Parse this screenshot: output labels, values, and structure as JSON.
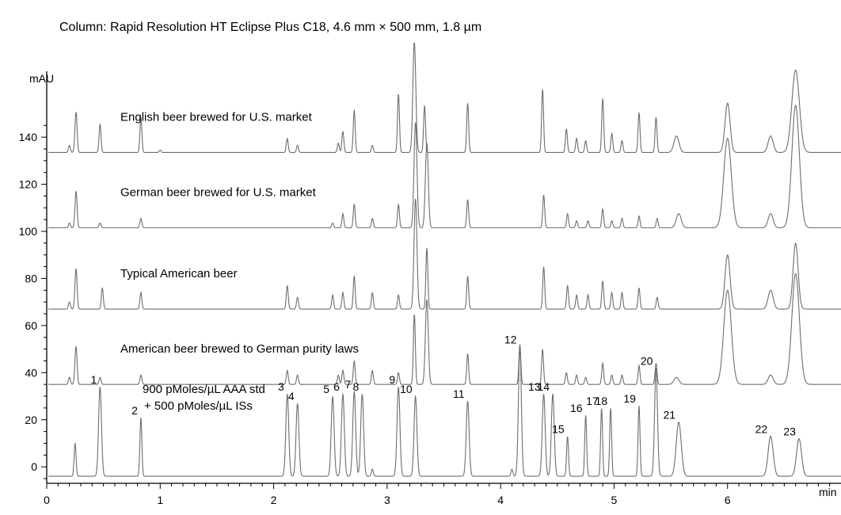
{
  "chart_data": {
    "type": "line",
    "title": "Column: Rapid Resolution HT Eclipse Plus C18, 4.6 mm × 500 mm, 1.8 µm",
    "xlabel": "min",
    "ylabel": "mAU",
    "xlim": [
      0,
      7.0
    ],
    "ylim": [
      -7,
      172
    ],
    "x_ticks": [
      0,
      1,
      2,
      3,
      4,
      5,
      6
    ],
    "y_ticks": [
      0,
      20,
      40,
      60,
      80,
      100,
      120,
      140
    ],
    "grid": false,
    "line_color": "#6e6e6e",
    "standard_note": [
      "900 pMoles/µL AAA std",
      "+ 500 pMoles/µL ISs"
    ],
    "series": [
      {
        "name": "English beer brewed for U.S. market",
        "baseline": 133.5,
        "peaks": [
          [
            0.2,
            3
          ],
          [
            0.25,
            4
          ],
          [
            0.26,
            15
          ],
          [
            0.47,
            12
          ],
          [
            0.83,
            15
          ],
          [
            1.0,
            1
          ],
          [
            2.12,
            6
          ],
          [
            2.21,
            3
          ],
          [
            2.57,
            4
          ],
          [
            2.61,
            9
          ],
          [
            2.71,
            18
          ],
          [
            2.87,
            3
          ],
          [
            3.1,
            25
          ],
          [
            3.24,
            47
          ],
          [
            3.33,
            20
          ],
          [
            3.71,
            21
          ],
          [
            4.37,
            27
          ],
          [
            4.58,
            10
          ],
          [
            4.67,
            6
          ],
          [
            4.75,
            5
          ],
          [
            4.9,
            23
          ],
          [
            4.98,
            8
          ],
          [
            5.07,
            5
          ],
          [
            5.22,
            17
          ],
          [
            5.37,
            15
          ],
          [
            5.55,
            7
          ],
          [
            6.0,
            21
          ],
          [
            6.38,
            7
          ],
          [
            6.6,
            35
          ]
        ]
      },
      {
        "name": "German beer brewed for U.S. market",
        "baseline": 101.5,
        "peaks": [
          [
            0.2,
            2
          ],
          [
            0.25,
            3
          ],
          [
            0.26,
            14
          ],
          [
            0.47,
            2
          ],
          [
            0.83,
            4
          ],
          [
            2.52,
            2
          ],
          [
            2.61,
            6
          ],
          [
            2.71,
            10
          ],
          [
            2.87,
            4
          ],
          [
            3.1,
            10
          ],
          [
            3.25,
            45
          ],
          [
            3.35,
            36
          ],
          [
            3.71,
            12
          ],
          [
            4.38,
            14
          ],
          [
            4.59,
            6
          ],
          [
            4.67,
            3
          ],
          [
            4.77,
            3
          ],
          [
            4.9,
            8
          ],
          [
            4.98,
            3
          ],
          [
            5.07,
            4
          ],
          [
            5.22,
            5
          ],
          [
            5.38,
            4
          ],
          [
            5.57,
            6
          ],
          [
            6.0,
            38
          ],
          [
            6.38,
            6
          ],
          [
            6.6,
            52
          ]
        ]
      },
      {
        "name": "Typical American beer",
        "baseline": 67,
        "peaks": [
          [
            0.2,
            3
          ],
          [
            0.25,
            4
          ],
          [
            0.26,
            15
          ],
          [
            0.49,
            9
          ],
          [
            0.83,
            7
          ],
          [
            2.12,
            10
          ],
          [
            2.21,
            5
          ],
          [
            2.52,
            6
          ],
          [
            2.61,
            7
          ],
          [
            2.71,
            14
          ],
          [
            2.87,
            7
          ],
          [
            3.1,
            6
          ],
          [
            3.25,
            47
          ],
          [
            3.35,
            26
          ],
          [
            3.71,
            14
          ],
          [
            4.38,
            18
          ],
          [
            4.59,
            10
          ],
          [
            4.67,
            6
          ],
          [
            4.77,
            6
          ],
          [
            4.9,
            12
          ],
          [
            4.98,
            7
          ],
          [
            5.07,
            7
          ],
          [
            5.22,
            9
          ],
          [
            5.38,
            5
          ],
          [
            6.0,
            23
          ],
          [
            6.38,
            8
          ],
          [
            6.6,
            28
          ]
        ]
      },
      {
        "name": "American beer brewed to German purity laws",
        "baseline": 35,
        "peaks": [
          [
            0.2,
            3
          ],
          [
            0.25,
            4
          ],
          [
            0.26,
            14
          ],
          [
            0.47,
            3
          ],
          [
            0.83,
            4
          ],
          [
            2.12,
            6
          ],
          [
            2.21,
            4
          ],
          [
            2.57,
            4
          ],
          [
            2.61,
            6
          ],
          [
            2.71,
            10
          ],
          [
            2.87,
            6
          ],
          [
            3.1,
            5
          ],
          [
            3.24,
            30
          ],
          [
            3.35,
            36
          ],
          [
            3.71,
            13
          ],
          [
            4.17,
            17
          ],
          [
            4.37,
            15
          ],
          [
            4.58,
            5
          ],
          [
            4.67,
            4
          ],
          [
            4.75,
            3
          ],
          [
            4.9,
            9
          ],
          [
            4.98,
            4
          ],
          [
            5.07,
            4
          ],
          [
            5.22,
            8
          ],
          [
            5.37,
            9
          ],
          [
            5.55,
            3
          ],
          [
            6.0,
            40
          ],
          [
            6.38,
            4
          ],
          [
            6.6,
            47
          ]
        ]
      },
      {
        "name": "",
        "baseline": -4,
        "peaks": [
          [
            0.25,
            14
          ],
          [
            0.47,
            38
          ],
          [
            0.83,
            25
          ],
          [
            2.12,
            35
          ],
          [
            2.21,
            31
          ],
          [
            2.52,
            34
          ],
          [
            2.61,
            35
          ],
          [
            2.71,
            36
          ],
          [
            2.78,
            35
          ],
          [
            2.87,
            3
          ],
          [
            3.1,
            38
          ],
          [
            3.25,
            34
          ],
          [
            3.71,
            32
          ],
          [
            4.1,
            3
          ],
          [
            4.17,
            55
          ],
          [
            4.38,
            35
          ],
          [
            4.46,
            35
          ],
          [
            4.59,
            17
          ],
          [
            4.75,
            26
          ],
          [
            4.89,
            29
          ],
          [
            4.97,
            29
          ],
          [
            5.22,
            30
          ],
          [
            5.37,
            46
          ],
          [
            5.57,
            23
          ],
          [
            6.38,
            17
          ],
          [
            6.63,
            16
          ]
        ]
      }
    ],
    "peak_labels": [
      {
        "label": "1",
        "x": 0.47,
        "y": 34
      },
      {
        "label": "2",
        "x": 0.83,
        "y": 21
      },
      {
        "label": "3",
        "x": 2.12,
        "y": 31
      },
      {
        "label": "4",
        "x": 2.21,
        "y": 27
      },
      {
        "label": "5",
        "x": 2.52,
        "y": 30
      },
      {
        "label": "6",
        "x": 2.61,
        "y": 31
      },
      {
        "label": "7",
        "x": 2.71,
        "y": 32
      },
      {
        "label": "8",
        "x": 2.78,
        "y": 31
      },
      {
        "label": "9",
        "x": 3.1,
        "y": 34
      },
      {
        "label": "10",
        "x": 3.25,
        "y": 30
      },
      {
        "label": "11",
        "x": 3.71,
        "y": 28
      },
      {
        "label": "12",
        "x": 4.17,
        "y": 51
      },
      {
        "label": "13",
        "x": 4.38,
        "y": 31
      },
      {
        "label": "14",
        "x": 4.46,
        "y": 31
      },
      {
        "label": "15",
        "x": 4.59,
        "y": 13
      },
      {
        "label": "16",
        "x": 4.75,
        "y": 22
      },
      {
        "label": "17",
        "x": 4.89,
        "y": 25
      },
      {
        "label": "18",
        "x": 4.97,
        "y": 25
      },
      {
        "label": "19",
        "x": 5.22,
        "y": 26
      },
      {
        "label": "20",
        "x": 5.37,
        "y": 42
      },
      {
        "label": "21",
        "x": 5.57,
        "y": 19
      },
      {
        "label": "22",
        "x": 6.38,
        "y": 13
      },
      {
        "label": "23",
        "x": 6.63,
        "y": 12
      }
    ]
  }
}
